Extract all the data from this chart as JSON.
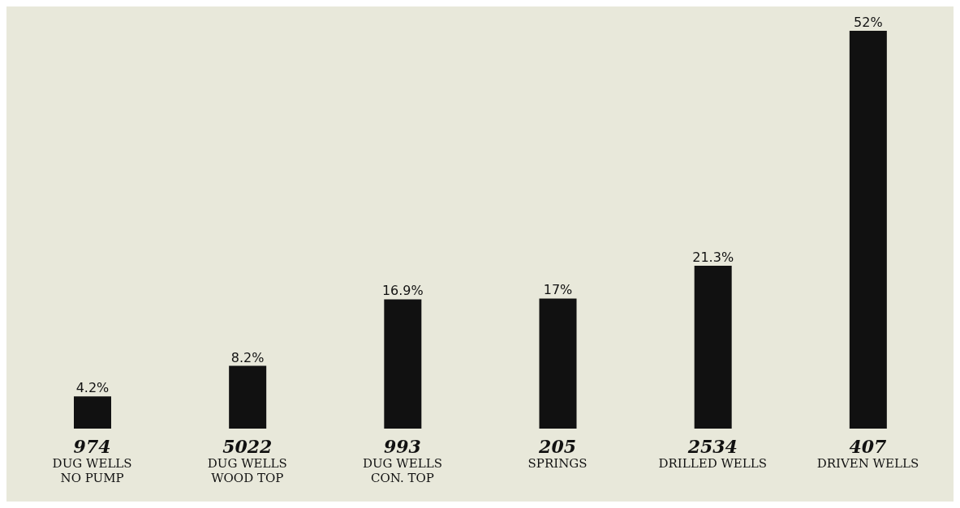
{
  "chart_data": {
    "type": "bar",
    "categories": [
      "974\nDUG WELLS\nNO PUMP",
      "5022\nDUG WELLS\nWOOD TOP",
      "993\nDUG WELLS\nCON. TOP",
      "205\nSPRINGS",
      "2534\nDRILLED WELLS",
      "407\nDRIVEN WELLS"
    ],
    "values": [
      4.2,
      8.2,
      16.9,
      17,
      21.3,
      52
    ],
    "value_labels": [
      "4.2%",
      "8.2%",
      "16.9%",
      "17%",
      "21.3%",
      "52%"
    ],
    "color": "#111111",
    "grid": false,
    "legend": false
  }
}
